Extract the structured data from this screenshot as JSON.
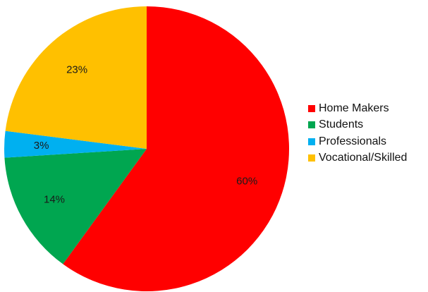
{
  "chart_data": {
    "type": "pie",
    "title": "",
    "start_angle_deg": 0,
    "direction": "clockwise",
    "legend_position": "right",
    "slices": [
      {
        "name": "Home Makers",
        "value": 60,
        "label": "60%",
        "color": "#ff0000"
      },
      {
        "name": "Students",
        "value": 14,
        "label": "14%",
        "color": "#00a650"
      },
      {
        "name": "Professionals",
        "value": 3,
        "label": "3%",
        "color": "#00b0f0"
      },
      {
        "name": "Vocational/Skilled",
        "value": 23,
        "label": "23%",
        "color": "#ffc000"
      }
    ]
  }
}
